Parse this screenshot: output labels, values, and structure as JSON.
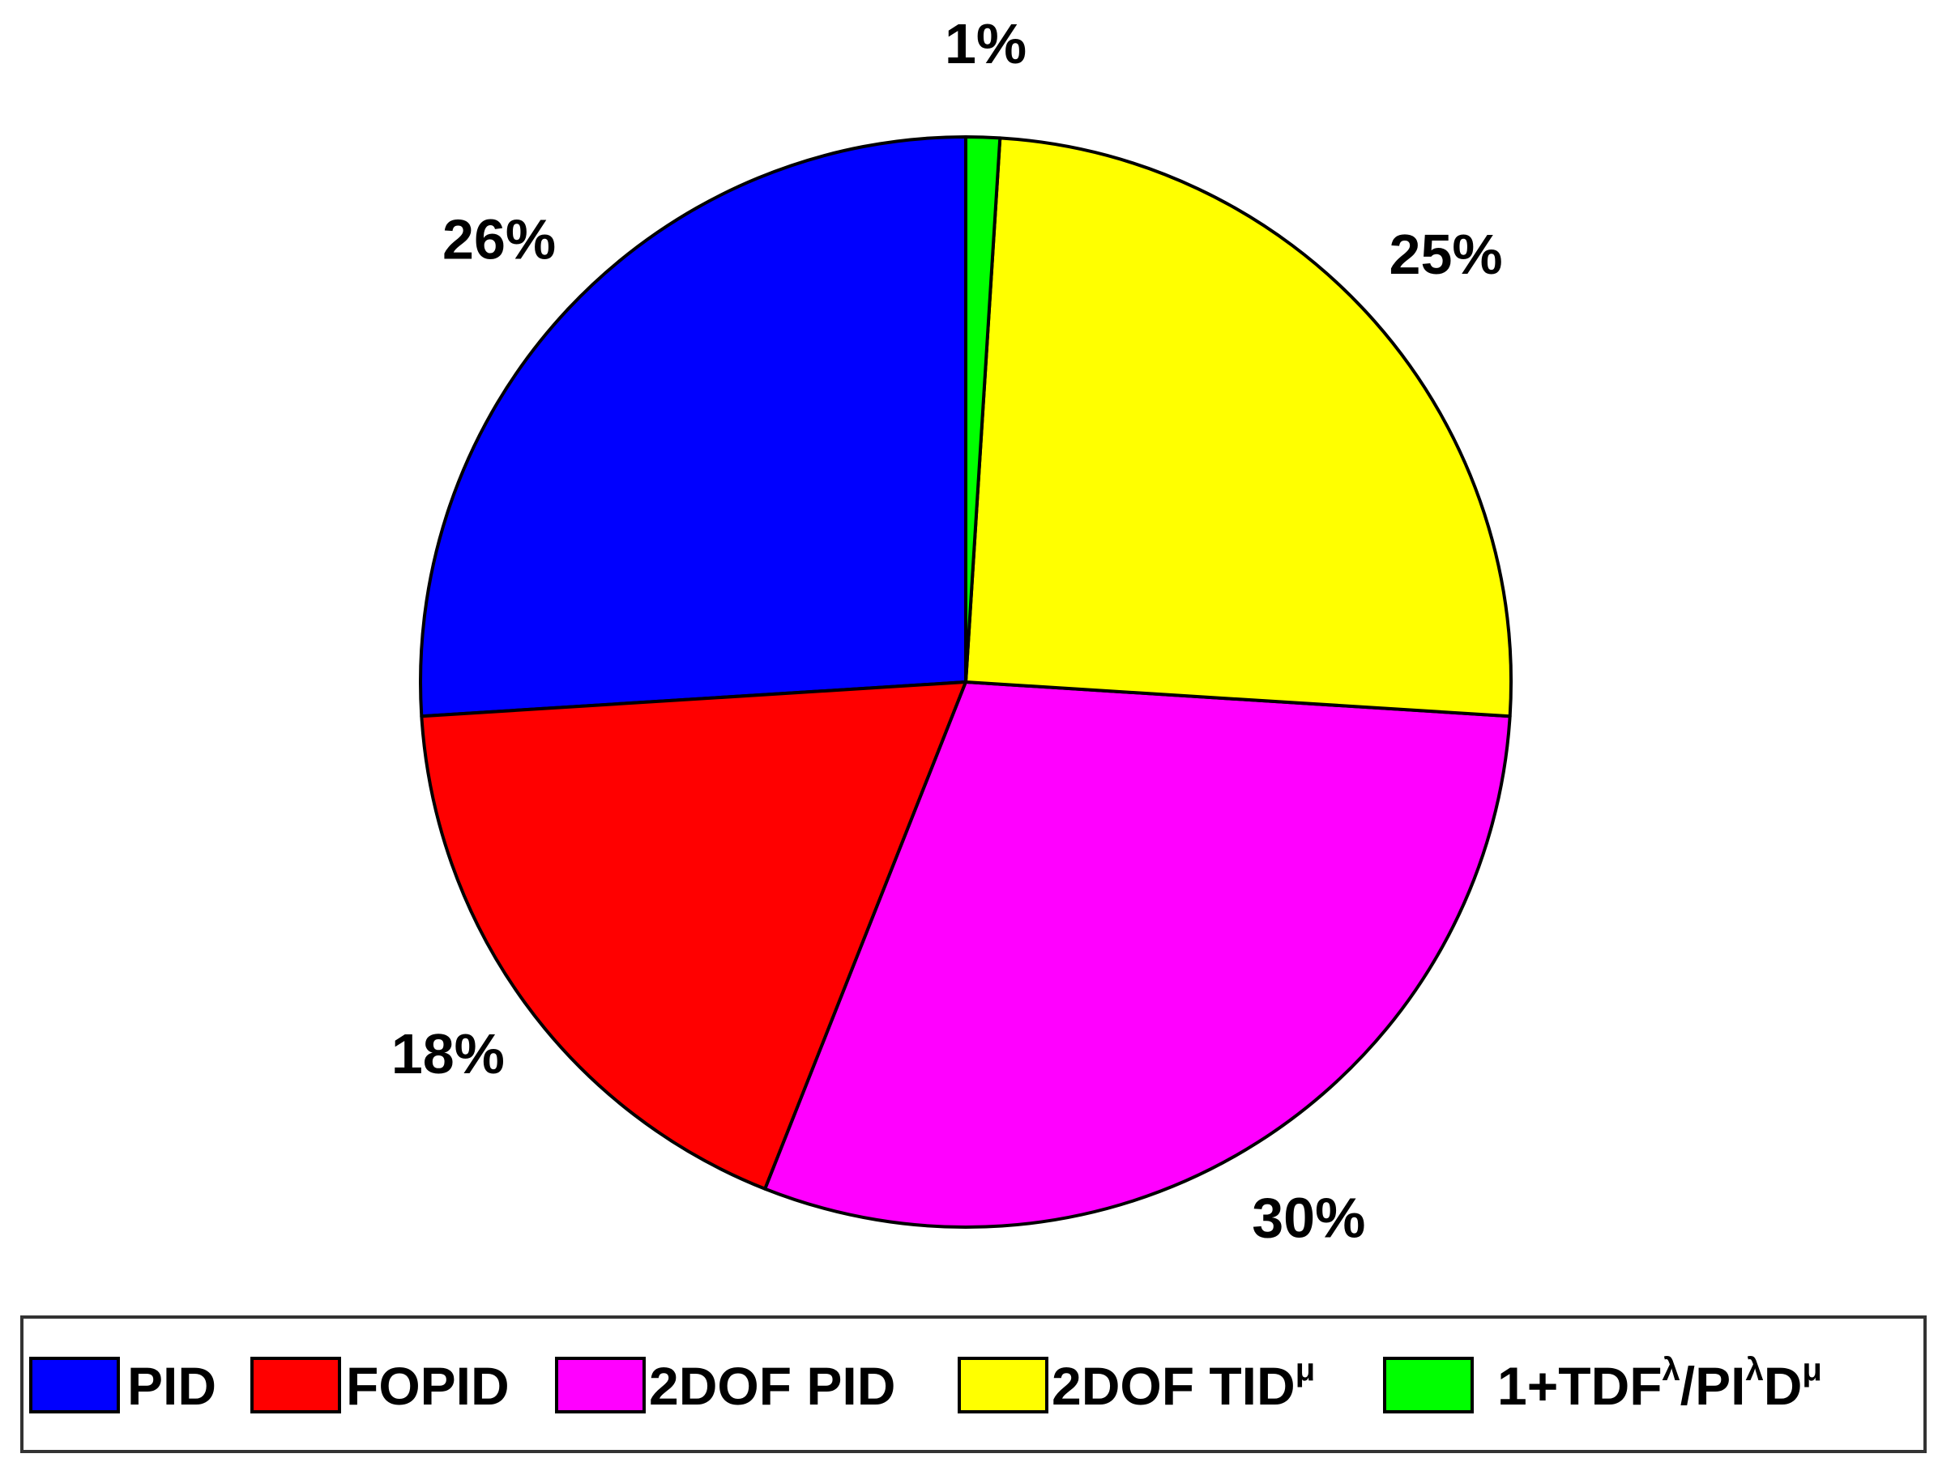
{
  "chart_data": {
    "type": "pie",
    "title": "",
    "start_angle_deg": 0,
    "direction": "clockwise",
    "slices": [
      {
        "label": "PID",
        "label_sup": "",
        "value": 26,
        "color": "#0000FF",
        "pct_text": "26%"
      },
      {
        "label": "FOPID",
        "label_sup": "",
        "value": 18,
        "color": "#FF0000",
        "pct_text": "18%"
      },
      {
        "label": "2DOF PID",
        "label_sup": "",
        "value": 30,
        "color": "#FF00FF",
        "pct_text": "30%"
      },
      {
        "label": "2DOF TID",
        "label_sup": "μ",
        "value": 25,
        "color": "#FFFF00",
        "pct_text": "25%"
      },
      {
        "label": "1+TDF",
        "label_sup": "λ",
        "label_rest": "/PI",
        "label_rest_sup": "λ",
        "label_tail": "D",
        "label_tail_sup": "μ",
        "value": 1,
        "color": "#00FF00",
        "pct_text": "1%"
      }
    ],
    "legend_position": "bottom"
  }
}
